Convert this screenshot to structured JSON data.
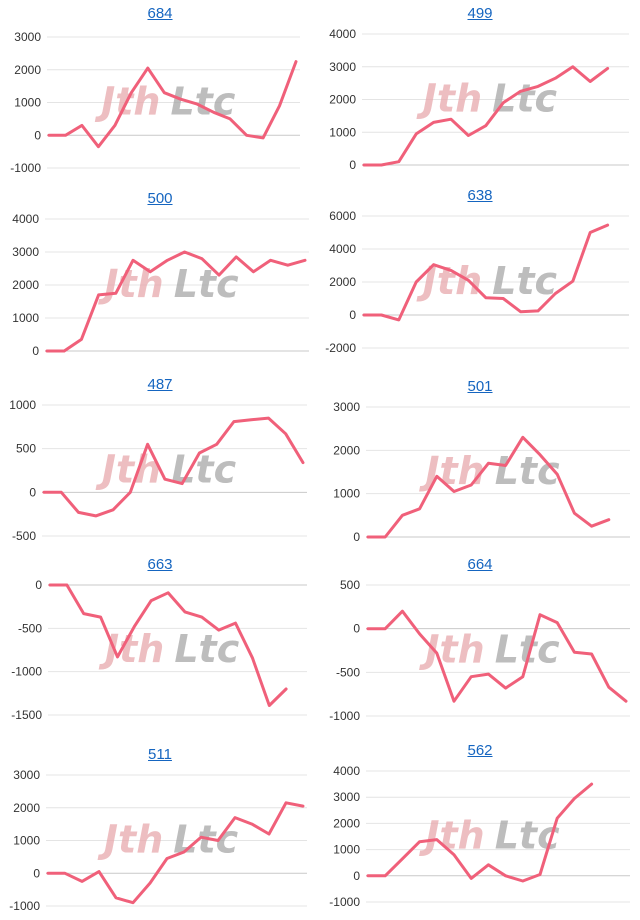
{
  "watermark": {
    "part1": "Jth",
    "part2": "Ltc"
  },
  "colors": {
    "line": "#f0607a",
    "title": "#1565c0",
    "grid": "#e4e4e4",
    "watermark_red": "#e8a9ad",
    "watermark_gray": "#a7a7a7"
  },
  "chart_data": [
    {
      "type": "line",
      "title": "684",
      "ylim": [
        -1000,
        3000
      ],
      "yticks": [
        "3000",
        "2000",
        "1000",
        "0",
        "-1000"
      ],
      "values": [
        0,
        0,
        300,
        -350,
        300,
        1300,
        2050,
        1300,
        1100,
        950,
        700,
        500,
        0,
        -80,
        900,
        2250
      ]
    },
    {
      "type": "line",
      "title": "499",
      "ylim": [
        0,
        4000
      ],
      "yticks": [
        "4000",
        "3000",
        "2000",
        "1000",
        "0"
      ],
      "values": [
        0,
        0,
        100,
        950,
        1300,
        1400,
        900,
        1200,
        1900,
        2250,
        2400,
        2650,
        3000,
        2550,
        2950
      ]
    },
    {
      "type": "line",
      "title": "500",
      "ylim": [
        0,
        4000
      ],
      "yticks": [
        "4000",
        "3000",
        "2000",
        "1000",
        "0"
      ],
      "values": [
        0,
        0,
        350,
        1700,
        1750,
        2750,
        2400,
        2750,
        3000,
        2800,
        2300,
        2850,
        2400,
        2750,
        2600,
        2750
      ]
    },
    {
      "type": "line",
      "title": "638",
      "ylim": [
        -2000,
        6000
      ],
      "yticks": [
        "6000",
        "4000",
        "2000",
        "0",
        "-2000"
      ],
      "values": [
        0,
        0,
        -300,
        2000,
        3050,
        2700,
        2100,
        1050,
        1000,
        200,
        250,
        1300,
        2050,
        5000,
        5450
      ]
    },
    {
      "type": "line",
      "title": "487",
      "ylim": [
        -500,
        1000
      ],
      "yticks": [
        "1000",
        "500",
        "0",
        "-500"
      ],
      "values": [
        0,
        0,
        -230,
        -270,
        -200,
        0,
        550,
        150,
        100,
        450,
        550,
        810,
        830,
        850,
        670,
        340
      ]
    },
    {
      "type": "line",
      "title": "501",
      "ylim": [
        0,
        3000
      ],
      "yticks": [
        "3000",
        "2000",
        "1000",
        "0"
      ],
      "values": [
        0,
        0,
        500,
        650,
        1400,
        1050,
        1200,
        1700,
        1650,
        2300,
        1900,
        1450,
        550,
        250,
        400
      ]
    },
    {
      "type": "line",
      "title": "663",
      "ylim": [
        -1500,
        0
      ],
      "yticks": [
        "0",
        "-500",
        "-1000",
        "-1500"
      ],
      "values": [
        0,
        0,
        -330,
        -370,
        -830,
        -480,
        -180,
        -90,
        -310,
        -370,
        -520,
        -440,
        -840,
        -1390,
        -1200
      ]
    },
    {
      "type": "line",
      "title": "664",
      "ylim": [
        -1000,
        500
      ],
      "yticks": [
        "500",
        "0",
        "-500",
        "-1000"
      ],
      "values": [
        0,
        0,
        200,
        -60,
        -280,
        -830,
        -550,
        -520,
        -680,
        -550,
        160,
        70,
        -270,
        -290,
        -670,
        -830
      ]
    },
    {
      "type": "line",
      "title": "511",
      "ylim": [
        -1000,
        3000
      ],
      "yticks": [
        "3000",
        "2000",
        "1000",
        "0",
        "-1000"
      ],
      "values": [
        0,
        0,
        -250,
        50,
        -750,
        -900,
        -300,
        450,
        650,
        1100,
        1000,
        1700,
        1500,
        1200,
        2150,
        2050
      ]
    },
    {
      "type": "line",
      "title": "562",
      "ylim": [
        -1000,
        4000
      ],
      "yticks": [
        "4000",
        "3000",
        "2000",
        "1000",
        "0",
        "-1000"
      ],
      "values": [
        0,
        0,
        650,
        1300,
        1380,
        800,
        -100,
        420,
        0,
        -200,
        50,
        2200,
        2950,
        3500
      ]
    }
  ]
}
